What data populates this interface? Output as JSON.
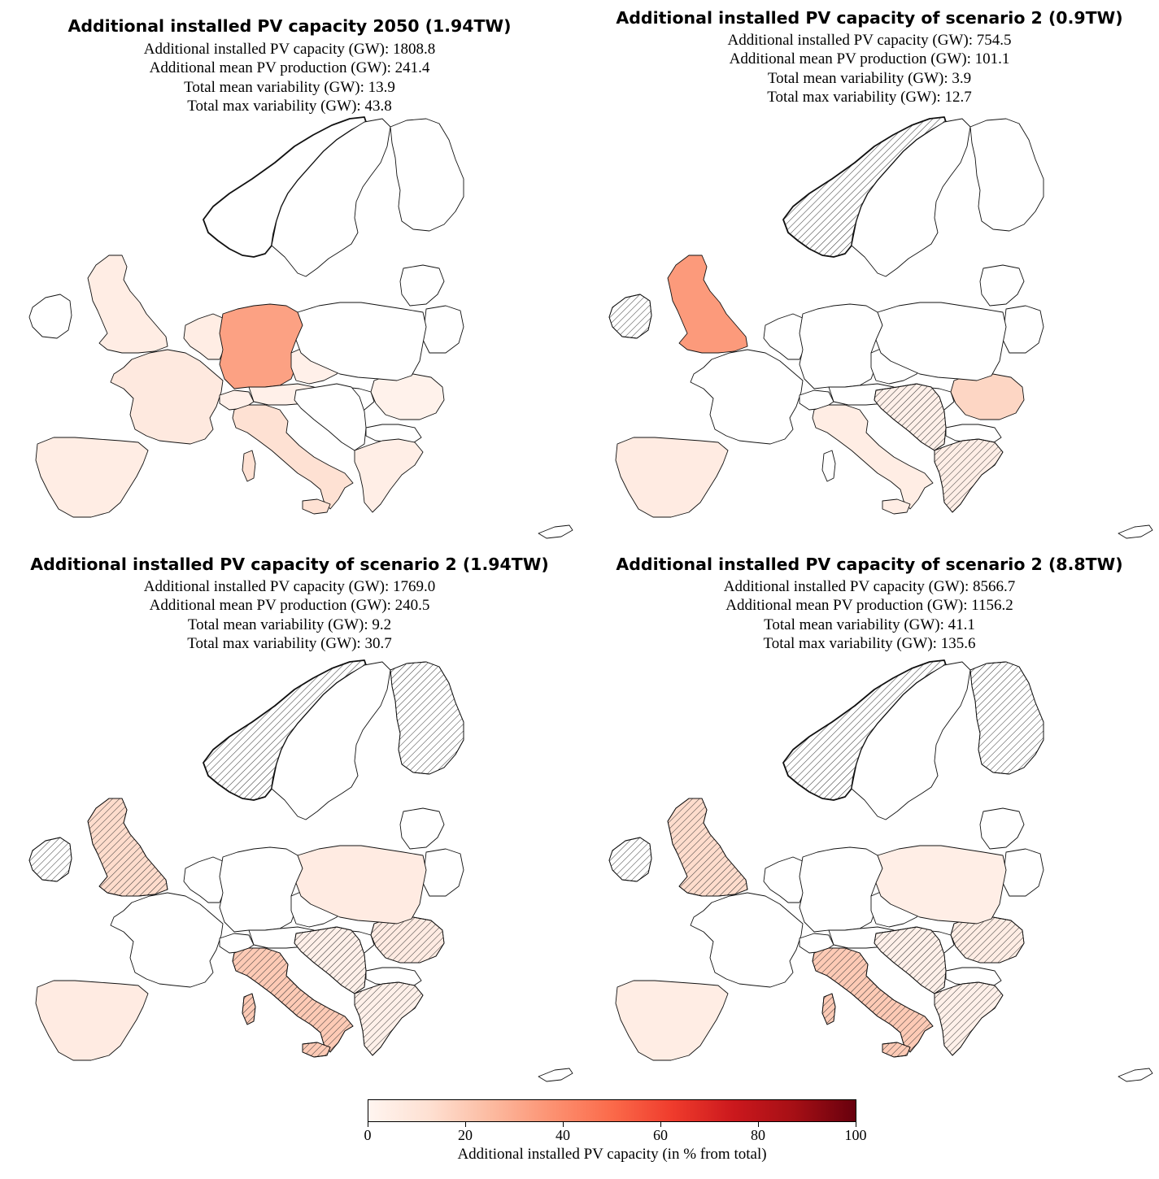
{
  "panels": [
    {
      "title": "Additional installed PV capacity 2050 (1.94TW)",
      "stats": [
        "Additional installed PV capacity (GW): 1808.8",
        "Additional mean PV production (GW): 241.4",
        "Total mean variability (GW): 13.9",
        "Total max variability (GW): 43.8"
      ],
      "regions": [
        {
          "id": "uk",
          "share": 5,
          "hatch": false
        },
        {
          "id": "ireland",
          "share": 0,
          "hatch": false
        },
        {
          "id": "france",
          "share": 7,
          "hatch": false
        },
        {
          "id": "benelux",
          "share": 5,
          "hatch": false
        },
        {
          "id": "germany",
          "share": 33,
          "hatch": false
        },
        {
          "id": "switzerland",
          "share": 3,
          "hatch": false
        },
        {
          "id": "italy",
          "share": 12,
          "hatch": false
        },
        {
          "id": "sardinia",
          "share": 12,
          "hatch": false
        },
        {
          "id": "sicily",
          "share": 12,
          "hatch": false
        },
        {
          "id": "iberia",
          "share": 5,
          "hatch": false
        },
        {
          "id": "czechia",
          "share": 3,
          "hatch": false
        },
        {
          "id": "austria",
          "share": 3,
          "hatch": false
        },
        {
          "id": "romania",
          "share": 2,
          "hatch": false
        },
        {
          "id": "greece",
          "share": 4,
          "hatch": false
        },
        {
          "id": "norway",
          "share": 0,
          "hatch": false
        },
        {
          "id": "sweden",
          "share": 0,
          "hatch": false
        },
        {
          "id": "finland",
          "share": 0,
          "hatch": false
        },
        {
          "id": "poland",
          "share": 0,
          "hatch": false
        },
        {
          "id": "balkans",
          "share": 0,
          "hatch": false
        }
      ]
    },
    {
      "title": "Additional installed PV capacity of scenario 2 (0.9TW)",
      "stats": [
        "Additional installed PV capacity (GW): 754.5",
        "Additional mean PV production (GW): 101.1",
        "Total mean variability (GW): 3.9",
        "Total max variability (GW): 12.7"
      ],
      "regions": [
        {
          "id": "uk",
          "share": 35,
          "hatch": false
        },
        {
          "id": "ireland",
          "share": 0,
          "hatch": true
        },
        {
          "id": "france",
          "share": 0,
          "hatch": false
        },
        {
          "id": "benelux",
          "share": 0,
          "hatch": false
        },
        {
          "id": "germany",
          "share": 0,
          "hatch": false
        },
        {
          "id": "switzerland",
          "share": 0,
          "hatch": false
        },
        {
          "id": "italy",
          "share": 5,
          "hatch": false
        },
        {
          "id": "sardinia",
          "share": 0,
          "hatch": false
        },
        {
          "id": "sicily",
          "share": 5,
          "hatch": false
        },
        {
          "id": "iberia",
          "share": 6,
          "hatch": false
        },
        {
          "id": "czechia",
          "share": 0,
          "hatch": false
        },
        {
          "id": "austria",
          "share": 0,
          "hatch": false
        },
        {
          "id": "romania",
          "share": 16,
          "hatch": false
        },
        {
          "id": "greece",
          "share": 4,
          "hatch": true
        },
        {
          "id": "norway",
          "share": 0,
          "hatch": true
        },
        {
          "id": "sweden",
          "share": 0,
          "hatch": false
        },
        {
          "id": "finland",
          "share": 0,
          "hatch": false
        },
        {
          "id": "poland",
          "share": 0,
          "hatch": false
        },
        {
          "id": "balkans",
          "share": 3,
          "hatch": true
        }
      ]
    },
    {
      "title": "Additional installed PV capacity of scenario 2 (1.94TW)",
      "stats": [
        "Additional installed PV capacity (GW): 1769.0",
        "Additional mean PV production (GW): 240.5",
        "Total mean variability (GW): 9.2",
        "Total max variability (GW): 30.7"
      ],
      "regions": [
        {
          "id": "uk",
          "share": 14,
          "hatch": true
        },
        {
          "id": "ireland",
          "share": 0,
          "hatch": true
        },
        {
          "id": "france",
          "share": 0,
          "hatch": false
        },
        {
          "id": "benelux",
          "share": 0,
          "hatch": false
        },
        {
          "id": "germany",
          "share": 0,
          "hatch": false
        },
        {
          "id": "switzerland",
          "share": 0,
          "hatch": false
        },
        {
          "id": "italy",
          "share": 20,
          "hatch": true
        },
        {
          "id": "sardinia",
          "share": 20,
          "hatch": true
        },
        {
          "id": "sicily",
          "share": 20,
          "hatch": true
        },
        {
          "id": "iberia",
          "share": 6,
          "hatch": false
        },
        {
          "id": "czechia",
          "share": 0,
          "hatch": false
        },
        {
          "id": "austria",
          "share": 0,
          "hatch": false
        },
        {
          "id": "romania",
          "share": 6,
          "hatch": true
        },
        {
          "id": "greece",
          "share": 3,
          "hatch": true
        },
        {
          "id": "norway",
          "share": 0,
          "hatch": true
        },
        {
          "id": "sweden",
          "share": 0,
          "hatch": false
        },
        {
          "id": "finland",
          "share": 0,
          "hatch": true
        },
        {
          "id": "poland",
          "share": 6,
          "hatch": false
        },
        {
          "id": "balkans",
          "share": 3,
          "hatch": true
        }
      ]
    },
    {
      "title": "Additional installed PV capacity of scenario 2 (8.8TW)",
      "stats": [
        "Additional installed PV capacity (GW): 8566.7",
        "Additional mean PV production (GW): 1156.2",
        "Total mean variability (GW): 41.1",
        "Total max variability (GW): 135.6"
      ],
      "regions": [
        {
          "id": "uk",
          "share": 14,
          "hatch": true
        },
        {
          "id": "ireland",
          "share": 0,
          "hatch": true
        },
        {
          "id": "france",
          "share": 0,
          "hatch": false
        },
        {
          "id": "benelux",
          "share": 0,
          "hatch": false
        },
        {
          "id": "germany",
          "share": 0,
          "hatch": false
        },
        {
          "id": "switzerland",
          "share": 0,
          "hatch": false
        },
        {
          "id": "italy",
          "share": 20,
          "hatch": true
        },
        {
          "id": "sardinia",
          "share": 20,
          "hatch": true
        },
        {
          "id": "sicily",
          "share": 20,
          "hatch": true
        },
        {
          "id": "iberia",
          "share": 5,
          "hatch": false
        },
        {
          "id": "czechia",
          "share": 0,
          "hatch": false
        },
        {
          "id": "austria",
          "share": 0,
          "hatch": false
        },
        {
          "id": "romania",
          "share": 5,
          "hatch": true
        },
        {
          "id": "greece",
          "share": 3,
          "hatch": true
        },
        {
          "id": "norway",
          "share": 0,
          "hatch": true
        },
        {
          "id": "sweden",
          "share": 0,
          "hatch": false
        },
        {
          "id": "finland",
          "share": 0,
          "hatch": true
        },
        {
          "id": "poland",
          "share": 4,
          "hatch": false
        },
        {
          "id": "balkans",
          "share": 3,
          "hatch": true
        }
      ]
    }
  ],
  "colorbar": {
    "label": "Additional installed PV capacity (in % from total)",
    "ticks": [
      "0",
      "20",
      "40",
      "60",
      "80",
      "100"
    ],
    "range": [
      0,
      100
    ],
    "colors": [
      "#fff5f0",
      "#fee0d2",
      "#fcbba1",
      "#fc9272",
      "#fb6a4a",
      "#ef3b2c",
      "#cb181d",
      "#a50f15",
      "#67000d"
    ]
  }
}
